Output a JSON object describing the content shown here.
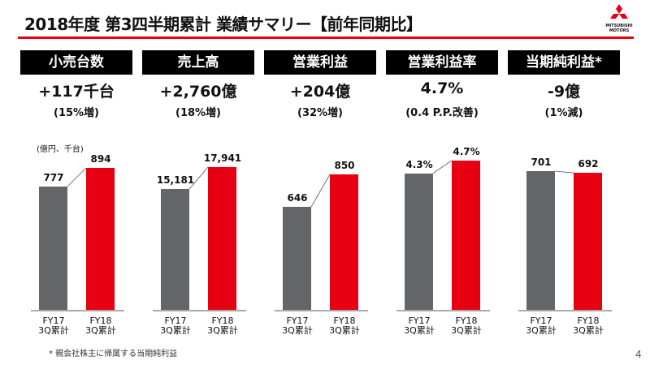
{
  "header": {
    "title": "2018年度 第3四半期累計 業績サマリー【前年同期比】",
    "logo_text": "MITSUBISHI MOTORS"
  },
  "colors": {
    "accent": "#e60012",
    "fy17": "#636569",
    "fy18": "#e60012"
  },
  "kpis": [
    {
      "label": "小売台数",
      "change": "+117千台",
      "pct": "(15%増)"
    },
    {
      "label": "売上高",
      "change": "+2,760億",
      "pct": "(18%増)"
    },
    {
      "label": "営業利益",
      "change": "+204億",
      "pct": "(32%増)"
    },
    {
      "label": "営業利益率",
      "change": "4.7%",
      "pct": "(0.4 P.P.改善)"
    },
    {
      "label": "当期純利益*",
      "change": "-9億",
      "pct": "(1%減)"
    }
  ],
  "unit_label": "(億円、千台)",
  "chart_data": [
    {
      "type": "bar",
      "categories": [
        "FY17\n3Q累計",
        "FY18\n3Q累計"
      ],
      "values": [
        777,
        894
      ],
      "labels": [
        "777",
        "894"
      ],
      "ylim": [
        0,
        1134
      ]
    },
    {
      "type": "bar",
      "categories": [
        "FY17\n3Q累計",
        "FY18\n3Q累計"
      ],
      "values": [
        15181,
        17941
      ],
      "labels": [
        "15,181",
        "17,941"
      ],
      "ylim": [
        0,
        22630
      ]
    },
    {
      "type": "bar",
      "categories": [
        "FY17\n3Q累計",
        "FY18\n3Q累計"
      ],
      "values": [
        646,
        850
      ],
      "labels": [
        "646",
        "850"
      ],
      "ylim": [
        0,
        1130
      ]
    },
    {
      "type": "bar",
      "categories": [
        "FY17\n3Q累計",
        "FY18\n3Q累計"
      ],
      "values": [
        4.3,
        4.7
      ],
      "labels": [
        "4.3%",
        "4.7%"
      ],
      "ylim": [
        0,
        5.67
      ]
    },
    {
      "type": "bar",
      "categories": [
        "FY17\n3Q累計",
        "FY18\n3Q累計"
      ],
      "values": [
        701,
        692
      ],
      "labels": [
        "701",
        "692"
      ],
      "ylim": [
        0,
        910
      ]
    }
  ],
  "footnote": "* 親会社株主に帰属する当期純利益",
  "page_number": "4"
}
